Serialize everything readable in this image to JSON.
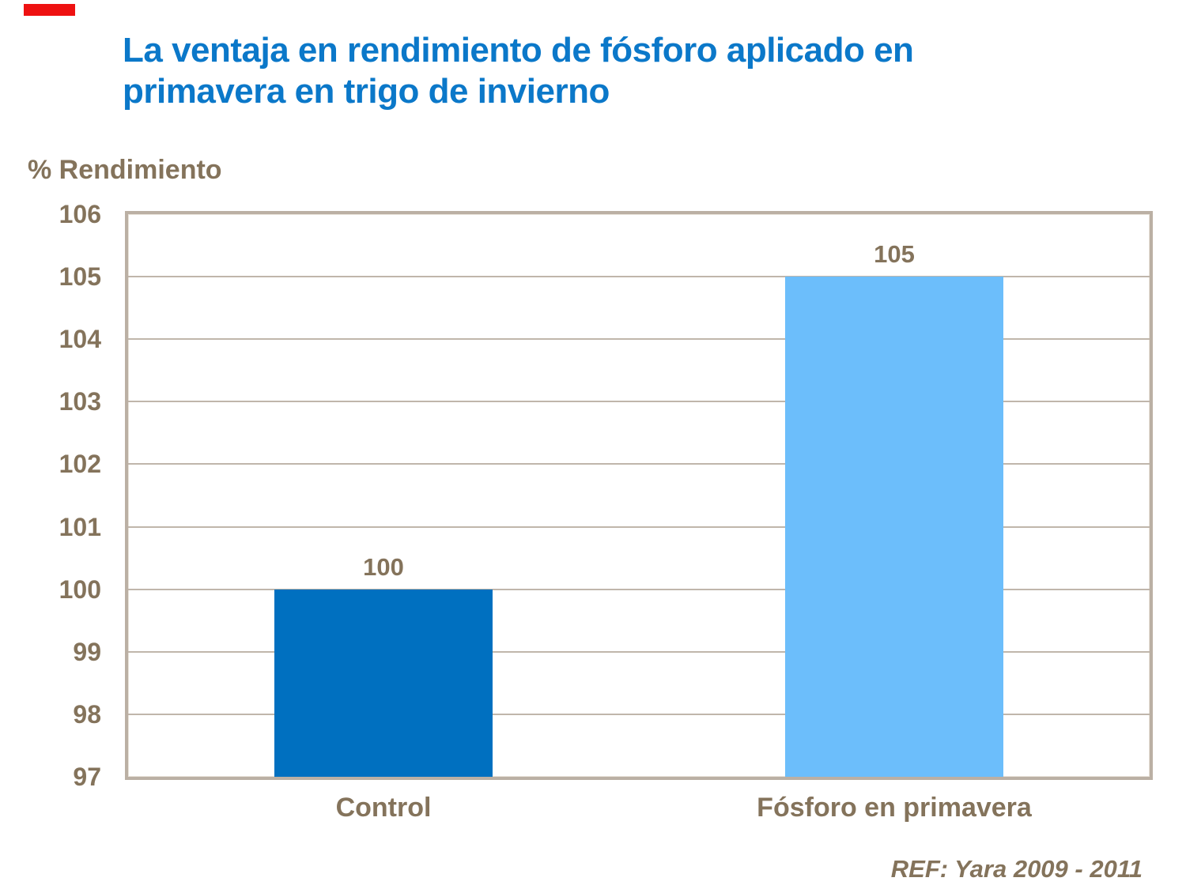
{
  "slide": {
    "accent_color": "#EE1111",
    "title_lines": [
      "La ventaja en rendimiento de fósforo aplicado en",
      "primavera en trigo de invierno"
    ],
    "title_color": "#0B78C9"
  },
  "chart_data": {
    "type": "bar",
    "title": "La ventaja en rendimiento de fósforo aplicado en primavera en trigo de invierno",
    "ylabel": "% Rendimiento",
    "xlabel": "",
    "categories": [
      "Control",
      "Fósforo en primavera"
    ],
    "values": [
      100,
      105
    ],
    "bar_labels": [
      "100",
      "105"
    ],
    "bar_colors": [
      "#0070C0",
      "#6CBEFB"
    ],
    "ylim": [
      97,
      106
    ],
    "yticks": [
      97,
      98,
      99,
      100,
      101,
      102,
      103,
      104,
      105,
      106
    ],
    "grid": true,
    "legend": false,
    "text_color": "#84735B",
    "frame_color": "#BBB0A4",
    "grid_color": "#C0B6AB",
    "source": "REF: Yara 2009 - 2011"
  }
}
